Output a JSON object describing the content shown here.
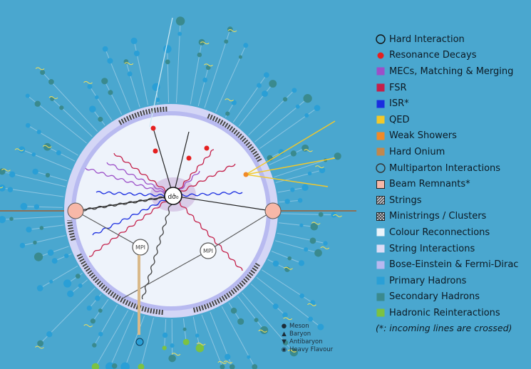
{
  "legend": [
    {
      "label": "Hard Interaction",
      "symbol": "circle-outline",
      "color": "#111111"
    },
    {
      "label": "Resonance Decays",
      "symbol": "dot",
      "color": "#e52020"
    },
    {
      "label": "MECs, Matching & Merging",
      "symbol": "square",
      "color": "#9c4fc8"
    },
    {
      "label": "FSR",
      "symbol": "square",
      "color": "#c4204a"
    },
    {
      "label": "ISR*",
      "symbol": "square",
      "color": "#1a2de0"
    },
    {
      "label": "QED",
      "symbol": "square",
      "color": "#f2c82a"
    },
    {
      "label": "Weak Showers",
      "symbol": "square",
      "color": "#f08a28"
    },
    {
      "label": "Hard Onium",
      "symbol": "square",
      "color": "#c0884e"
    },
    {
      "label": "Multiparton Interactions",
      "symbol": "circle-outline",
      "color": "#333333"
    },
    {
      "label": "Beam Remnants*",
      "symbol": "square-outline",
      "color": "#f7b8a8"
    },
    {
      "label": "Strings",
      "symbol": "hatched",
      "color": "#7a8a96"
    },
    {
      "label": "Ministrings / Clusters",
      "symbol": "crosshatched",
      "color": "#7a8a96"
    },
    {
      "label": "Colour Reconnections",
      "symbol": "square",
      "color": "#eaf4fb"
    },
    {
      "label": "String Interactions",
      "symbol": "square",
      "color": "#dcdcf6"
    },
    {
      "label": "Bose-Einstein & Fermi-Dirac",
      "symbol": "square",
      "color": "#b8b8f0"
    },
    {
      "label": "Primary Hadrons",
      "symbol": "square",
      "color": "#2a9fd6"
    },
    {
      "label": "Secondary Hadrons",
      "symbol": "square",
      "color": "#3a8a8e"
    },
    {
      "label": "Hadronic Reinteractions",
      "symbol": "square",
      "color": "#7cc242"
    }
  ],
  "legend_note": "(*: incoming lines are crossed)",
  "small_legend": [
    {
      "label": "Meson",
      "symbol": "dot"
    },
    {
      "label": "Baryon",
      "symbol": "triangle-up"
    },
    {
      "label": "Antibaryon",
      "symbol": "triangle-down"
    },
    {
      "label": "Heavy Flavour",
      "symbol": "dotted-circle"
    }
  ],
  "diagram": {
    "hard_label": "dσ̂₀",
    "mpi_label": "MPI"
  },
  "colors": {
    "background": "#4aa7cf",
    "outer_ring": "#d4d6f6",
    "inner_ring": "#b4b6ee",
    "core": "#eef3fb",
    "primary": "#2a9fd6",
    "secondary": "#3a8a8e",
    "reinteraction": "#7cc242"
  }
}
